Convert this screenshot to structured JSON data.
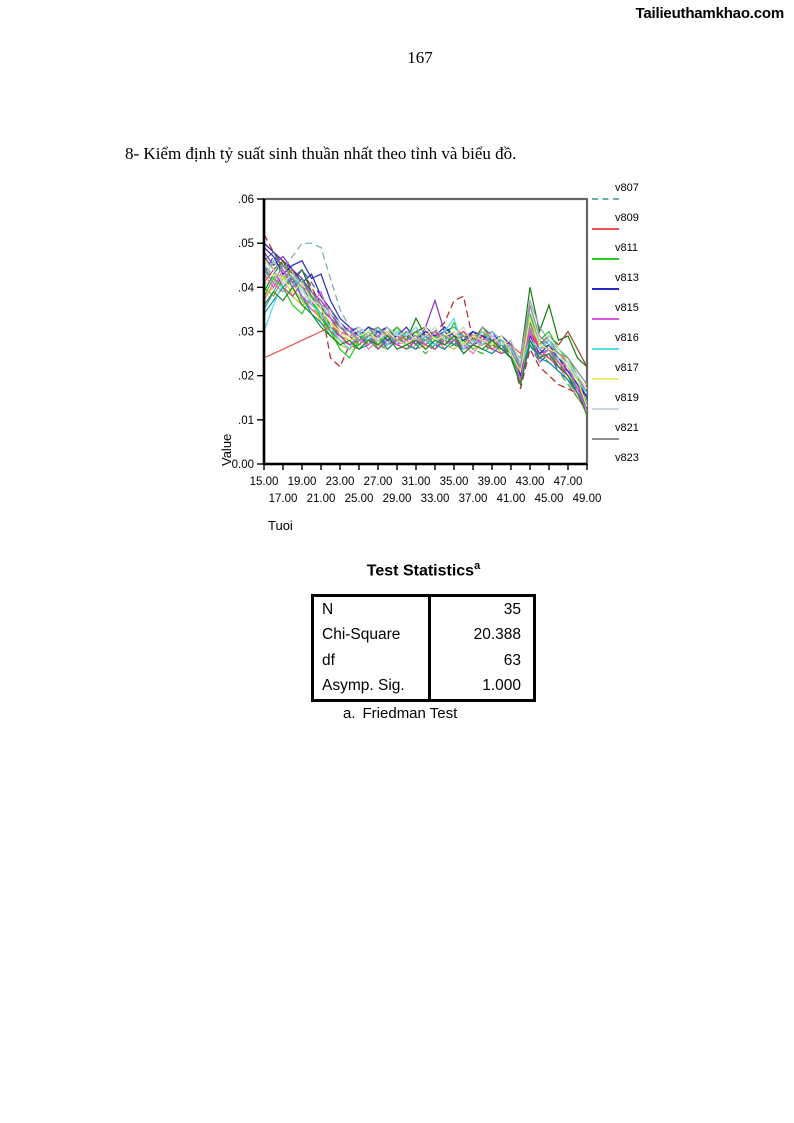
{
  "page": {
    "watermark": "Tailieuthamkhao.com",
    "page_number": "167",
    "heading": "8- Kiểm định tỷ suất sinh thuần nhất theo tỉnh và biểu đồ."
  },
  "chart_data": {
    "type": "line",
    "title": "",
    "xlabel": "Tuoi",
    "ylabel": "Value",
    "xlim": [
      15,
      49
    ],
    "ylim": [
      0,
      0.06
    ],
    "x_start": 15,
    "x_step": 1,
    "grid": false,
    "legend_position": "right",
    "y_ticks": [
      ".06",
      ".05",
      ".04",
      ".03",
      ".02",
      ".01",
      "0.00"
    ],
    "x_ticks_row1": [
      "15.00",
      "19.00",
      "23.00",
      "27.00",
      "31.00",
      "35.00",
      "39.00",
      "43.00",
      "47.00"
    ],
    "x_ticks_row2": [
      "17.00",
      "21.00",
      "25.00",
      "29.00",
      "33.00",
      "37.00",
      "41.00",
      "45.00",
      "49.00"
    ],
    "series": [
      {
        "name": "v807",
        "color": "#73AAB2",
        "dash": true,
        "legend_swatch": true,
        "values": [
          0.04,
          0.046,
          0.044,
          0.047,
          0.05,
          0.05,
          0.049,
          0.042,
          0.035,
          0.031,
          0.03,
          0.031,
          0.029,
          0.03,
          0.029,
          0.03,
          0.029,
          0.03,
          0.028,
          0.03,
          0.031,
          0.029,
          0.03,
          0.029,
          0.028,
          0.027,
          0.026,
          0.022,
          0.031,
          0.027,
          0.028,
          0.025,
          0.022,
          0.018,
          0.014
        ]
      },
      {
        "name": "v809",
        "color": "#F05050",
        "dash": false,
        "legend_swatch": true,
        "values": [
          0.024,
          0.025,
          0.026,
          0.027,
          0.028,
          0.029,
          0.03,
          0.031,
          0.03,
          0.029,
          0.03,
          0.029,
          0.03,
          0.029,
          0.028,
          0.029,
          0.03,
          0.029,
          0.03,
          0.028,
          0.029,
          0.03,
          0.028,
          0.029,
          0.03,
          0.028,
          0.027,
          0.025,
          0.03,
          0.027,
          0.026,
          0.025,
          0.023,
          0.02,
          0.016
        ]
      },
      {
        "name": "v811",
        "color": "#22CC22",
        "dash": false,
        "legend_swatch": true,
        "values": [
          0.038,
          0.042,
          0.04,
          0.036,
          0.034,
          0.038,
          0.033,
          0.03,
          0.026,
          0.024,
          0.028,
          0.03,
          0.027,
          0.029,
          0.031,
          0.028,
          0.03,
          0.027,
          0.029,
          0.028,
          0.032,
          0.027,
          0.028,
          0.03,
          0.027,
          0.028,
          0.025,
          0.02,
          0.034,
          0.028,
          0.03,
          0.026,
          0.024,
          0.02,
          0.013
        ]
      },
      {
        "name": "v813",
        "color": "#2828C8",
        "dash": false,
        "legend_swatch": true,
        "values": [
          0.049,
          0.047,
          0.043,
          0.045,
          0.046,
          0.042,
          0.043,
          0.037,
          0.033,
          0.031,
          0.029,
          0.031,
          0.03,
          0.028,
          0.029,
          0.031,
          0.028,
          0.03,
          0.029,
          0.031,
          0.029,
          0.028,
          0.03,
          0.029,
          0.028,
          0.029,
          0.027,
          0.02,
          0.029,
          0.025,
          0.027,
          0.024,
          0.021,
          0.018,
          0.015
        ]
      },
      {
        "name": "v815",
        "color": "#DD55DD",
        "dash": false,
        "legend_swatch": true,
        "values": [
          0.043,
          0.04,
          0.044,
          0.041,
          0.038,
          0.036,
          0.039,
          0.033,
          0.029,
          0.031,
          0.028,
          0.027,
          0.029,
          0.03,
          0.027,
          0.028,
          0.029,
          0.027,
          0.03,
          0.027,
          0.028,
          0.026,
          0.029,
          0.027,
          0.029,
          0.026,
          0.027,
          0.019,
          0.03,
          0.024,
          0.026,
          0.023,
          0.022,
          0.017,
          0.012
        ]
      },
      {
        "name": "v816",
        "color": "#55DDEE",
        "dash": false,
        "legend_swatch": true,
        "values": [
          0.03,
          0.036,
          0.041,
          0.043,
          0.04,
          0.036,
          0.034,
          0.031,
          0.028,
          0.026,
          0.03,
          0.028,
          0.031,
          0.027,
          0.03,
          0.029,
          0.031,
          0.028,
          0.027,
          0.03,
          0.033,
          0.026,
          0.028,
          0.027,
          0.03,
          0.028,
          0.026,
          0.022,
          0.028,
          0.026,
          0.028,
          0.024,
          0.023,
          0.019,
          0.016
        ]
      },
      {
        "name": "v817",
        "color": "#EEEE77",
        "dash": false,
        "legend_swatch": true,
        "values": [
          0.041,
          0.043,
          0.042,
          0.039,
          0.041,
          0.037,
          0.035,
          0.032,
          0.03,
          0.028,
          0.029,
          0.03,
          0.028,
          0.03,
          0.028,
          0.027,
          0.029,
          0.031,
          0.028,
          0.029,
          0.03,
          0.027,
          0.029,
          0.028,
          0.027,
          0.029,
          0.025,
          0.021,
          0.033,
          0.027,
          0.026,
          0.025,
          0.022,
          0.019,
          0.013
        ]
      },
      {
        "name": "v819",
        "color": "#C6D8DE",
        "dash": false,
        "legend_swatch": true,
        "values": [
          0.046,
          0.044,
          0.041,
          0.043,
          0.039,
          0.037,
          0.036,
          0.034,
          0.032,
          0.029,
          0.031,
          0.029,
          0.028,
          0.031,
          0.029,
          0.03,
          0.028,
          0.029,
          0.031,
          0.028,
          0.029,
          0.031,
          0.027,
          0.03,
          0.029,
          0.027,
          0.028,
          0.023,
          0.035,
          0.028,
          0.029,
          0.026,
          0.023,
          0.02,
          0.017
        ]
      },
      {
        "name": "v821",
        "color": "#909090",
        "dash": false,
        "legend_swatch": true,
        "values": [
          0.044,
          0.041,
          0.045,
          0.042,
          0.04,
          0.039,
          0.036,
          0.035,
          0.031,
          0.03,
          0.028,
          0.029,
          0.031,
          0.029,
          0.028,
          0.03,
          0.029,
          0.028,
          0.03,
          0.029,
          0.028,
          0.029,
          0.027,
          0.031,
          0.028,
          0.026,
          0.027,
          0.022,
          0.036,
          0.029,
          0.027,
          0.025,
          0.024,
          0.021,
          0.018
        ]
      },
      {
        "name": "v823",
        "color": "#1E8A1E",
        "dash": false,
        "legend_swatch": false,
        "values": [
          0.036,
          0.039,
          0.037,
          0.04,
          0.036,
          0.034,
          0.031,
          0.029,
          0.027,
          0.028,
          0.026,
          0.028,
          0.027,
          0.029,
          0.026,
          0.027,
          0.028,
          0.026,
          0.028,
          0.027,
          0.029,
          0.025,
          0.027,
          0.026,
          0.028,
          0.026,
          0.024,
          0.018,
          0.028,
          0.024,
          0.025,
          0.022,
          0.02,
          0.016,
          0.011
        ]
      }
    ],
    "unlabeled_series": [
      {
        "color": "#1B2FA0",
        "dash": false,
        "values": [
          0.05,
          0.048,
          0.046,
          0.044,
          0.041,
          0.043,
          0.038,
          0.035,
          0.032,
          0.03,
          0.031,
          0.029,
          0.03,
          0.031,
          0.029,
          0.028,
          0.03,
          0.031,
          0.029,
          0.03,
          0.031,
          0.029,
          0.028,
          0.03,
          0.029,
          0.028,
          0.026,
          0.023,
          0.03,
          0.026,
          0.028,
          0.025,
          0.023,
          0.019,
          0.015
        ]
      },
      {
        "color": "#B22222",
        "dash": true,
        "values": [
          0.052,
          0.048,
          0.045,
          0.042,
          0.044,
          0.04,
          0.036,
          0.024,
          0.022,
          0.027,
          0.026,
          0.028,
          0.027,
          0.026,
          0.028,
          0.027,
          0.029,
          0.028,
          0.03,
          0.032,
          0.037,
          0.038,
          0.028,
          0.027,
          0.026,
          0.027,
          0.025,
          0.017,
          0.026,
          0.022,
          0.02,
          0.018,
          0.017,
          0.016,
          0.013
        ]
      },
      {
        "color": "#0E7F0E",
        "dash": false,
        "values": [
          0.039,
          0.043,
          0.046,
          0.041,
          0.044,
          0.039,
          0.036,
          0.031,
          0.029,
          0.027,
          0.029,
          0.031,
          0.028,
          0.027,
          0.03,
          0.028,
          0.033,
          0.029,
          0.03,
          0.028,
          0.027,
          0.029,
          0.028,
          0.031,
          0.029,
          0.027,
          0.026,
          0.024,
          0.04,
          0.03,
          0.036,
          0.028,
          0.029,
          0.024,
          0.022
        ]
      },
      {
        "color": "#9A9A30",
        "dash": false,
        "values": [
          0.04,
          0.038,
          0.042,
          0.044,
          0.037,
          0.035,
          0.034,
          0.032,
          0.029,
          0.028,
          0.03,
          0.027,
          0.029,
          0.028,
          0.031,
          0.029,
          0.028,
          0.03,
          0.029,
          0.027,
          0.028,
          0.03,
          0.027,
          0.028,
          0.026,
          0.028,
          0.027,
          0.021,
          0.032,
          0.026,
          0.027,
          0.023,
          0.021,
          0.017,
          0.014
        ]
      },
      {
        "color": "#8A4B2A",
        "dash": false,
        "values": [
          0.047,
          0.044,
          0.046,
          0.043,
          0.04,
          0.038,
          0.035,
          0.033,
          0.03,
          0.029,
          0.027,
          0.029,
          0.028,
          0.03,
          0.029,
          0.027,
          0.028,
          0.029,
          0.027,
          0.029,
          0.028,
          0.027,
          0.03,
          0.028,
          0.027,
          0.026,
          0.028,
          0.02,
          0.034,
          0.027,
          0.029,
          0.027,
          0.03,
          0.026,
          0.022
        ]
      },
      {
        "color": "#2AA0A0",
        "dash": false,
        "values": [
          0.035,
          0.039,
          0.043,
          0.04,
          0.042,
          0.037,
          0.034,
          0.03,
          0.028,
          0.026,
          0.029,
          0.028,
          0.026,
          0.029,
          0.027,
          0.03,
          0.027,
          0.028,
          0.026,
          0.029,
          0.027,
          0.026,
          0.028,
          0.027,
          0.029,
          0.027,
          0.025,
          0.019,
          0.029,
          0.025,
          0.026,
          0.022,
          0.02,
          0.017,
          0.013
        ]
      },
      {
        "color": "#8A2BBE",
        "dash": false,
        "values": [
          0.048,
          0.045,
          0.047,
          0.044,
          0.042,
          0.039,
          0.037,
          0.034,
          0.031,
          0.029,
          0.03,
          0.028,
          0.029,
          0.027,
          0.028,
          0.029,
          0.027,
          0.031,
          0.037,
          0.03,
          0.028,
          0.029,
          0.027,
          0.028,
          0.03,
          0.027,
          0.026,
          0.021,
          0.028,
          0.024,
          0.026,
          0.023,
          0.02,
          0.016,
          0.012
        ]
      },
      {
        "color": "#F06FAE",
        "dash": false,
        "values": [
          0.037,
          0.041,
          0.039,
          0.042,
          0.038,
          0.035,
          0.033,
          0.031,
          0.028,
          0.027,
          0.029,
          0.026,
          0.028,
          0.027,
          0.029,
          0.028,
          0.026,
          0.027,
          0.029,
          0.026,
          0.028,
          0.027,
          0.025,
          0.028,
          0.026,
          0.027,
          0.024,
          0.018,
          0.031,
          0.023,
          0.025,
          0.022,
          0.019,
          0.015,
          0.012
        ]
      },
      {
        "color": "#77DD77",
        "dash": false,
        "values": [
          0.042,
          0.046,
          0.043,
          0.04,
          0.037,
          0.039,
          0.035,
          0.032,
          0.03,
          0.029,
          0.031,
          0.029,
          0.027,
          0.03,
          0.028,
          0.029,
          0.03,
          0.028,
          0.029,
          0.031,
          0.028,
          0.027,
          0.029,
          0.03,
          0.028,
          0.026,
          0.027,
          0.023,
          0.033,
          0.027,
          0.028,
          0.025,
          0.022,
          0.018,
          0.014
        ]
      },
      {
        "color": "#9AA4B0",
        "dash": false,
        "values": [
          0.045,
          0.042,
          0.04,
          0.043,
          0.041,
          0.038,
          0.036,
          0.033,
          0.031,
          0.03,
          0.028,
          0.03,
          0.031,
          0.028,
          0.03,
          0.028,
          0.029,
          0.03,
          0.028,
          0.027,
          0.029,
          0.028,
          0.03,
          0.027,
          0.029,
          0.028,
          0.026,
          0.024,
          0.037,
          0.031,
          0.028,
          0.026,
          0.024,
          0.021,
          0.018
        ]
      },
      {
        "color": "#3A55D0",
        "dash": true,
        "values": [
          0.043,
          0.047,
          0.045,
          0.042,
          0.044,
          0.041,
          0.038,
          0.035,
          0.031,
          0.03,
          0.029,
          0.027,
          0.03,
          0.029,
          0.031,
          0.028,
          0.03,
          0.029,
          0.027,
          0.028,
          0.03,
          0.029,
          0.027,
          0.029,
          0.028,
          0.026,
          0.025,
          0.02,
          0.027,
          0.023,
          0.025,
          0.021,
          0.019,
          0.017,
          0.014
        ]
      },
      {
        "color": "#D2B928",
        "dash": false,
        "values": [
          0.038,
          0.04,
          0.043,
          0.038,
          0.036,
          0.037,
          0.032,
          0.03,
          0.027,
          0.026,
          0.028,
          0.029,
          0.027,
          0.026,
          0.028,
          0.027,
          0.029,
          0.026,
          0.028,
          0.027,
          0.026,
          0.028,
          0.026,
          0.027,
          0.028,
          0.025,
          0.026,
          0.019,
          0.029,
          0.025,
          0.024,
          0.023,
          0.021,
          0.018,
          0.015
        ]
      },
      {
        "color": "#CC3399",
        "dash": false,
        "values": [
          0.041,
          0.044,
          0.04,
          0.038,
          0.041,
          0.036,
          0.034,
          0.03,
          0.029,
          0.027,
          0.028,
          0.03,
          0.026,
          0.028,
          0.027,
          0.026,
          0.028,
          0.027,
          0.026,
          0.028,
          0.029,
          0.026,
          0.027,
          0.029,
          0.026,
          0.025,
          0.026,
          0.02,
          0.03,
          0.026,
          0.024,
          0.022,
          0.021,
          0.018,
          0.013
        ]
      },
      {
        "color": "#3FAF3F",
        "dash": true,
        "values": [
          0.044,
          0.042,
          0.045,
          0.043,
          0.039,
          0.037,
          0.033,
          0.031,
          0.028,
          0.026,
          0.027,
          0.028,
          0.026,
          0.027,
          0.029,
          0.026,
          0.027,
          0.025,
          0.027,
          0.026,
          0.027,
          0.028,
          0.026,
          0.025,
          0.027,
          0.026,
          0.024,
          0.019,
          0.028,
          0.025,
          0.023,
          0.021,
          0.018,
          0.015,
          0.012
        ]
      },
      {
        "color": "#557788",
        "dash": false,
        "values": [
          0.046,
          0.048,
          0.044,
          0.04,
          0.042,
          0.038,
          0.035,
          0.033,
          0.031,
          0.029,
          0.03,
          0.028,
          0.029,
          0.031,
          0.028,
          0.027,
          0.029,
          0.028,
          0.03,
          0.029,
          0.027,
          0.028,
          0.029,
          0.027,
          0.028,
          0.027,
          0.025,
          0.022,
          0.032,
          0.028,
          0.026,
          0.024,
          0.022,
          0.019,
          0.016
        ]
      },
      {
        "color": "#0E8F9F",
        "dash": false,
        "values": [
          0.034,
          0.037,
          0.04,
          0.042,
          0.038,
          0.034,
          0.032,
          0.029,
          0.027,
          0.028,
          0.026,
          0.027,
          0.029,
          0.026,
          0.028,
          0.027,
          0.026,
          0.029,
          0.027,
          0.026,
          0.028,
          0.025,
          0.027,
          0.026,
          0.025,
          0.027,
          0.024,
          0.018,
          0.027,
          0.024,
          0.023,
          0.021,
          0.019,
          0.016,
          0.013
        ]
      }
    ]
  },
  "table": {
    "title": "Test Statistics",
    "title_superscript": "a",
    "rows": [
      {
        "label": "N",
        "value": "35"
      },
      {
        "label": "Chi-Square",
        "value": "20.388"
      },
      {
        "label": "df",
        "value": "63"
      },
      {
        "label": "Asymp. Sig.",
        "value": "1.000"
      }
    ],
    "footnote_marker": "a.",
    "footnote_text": "Friedman Test"
  }
}
